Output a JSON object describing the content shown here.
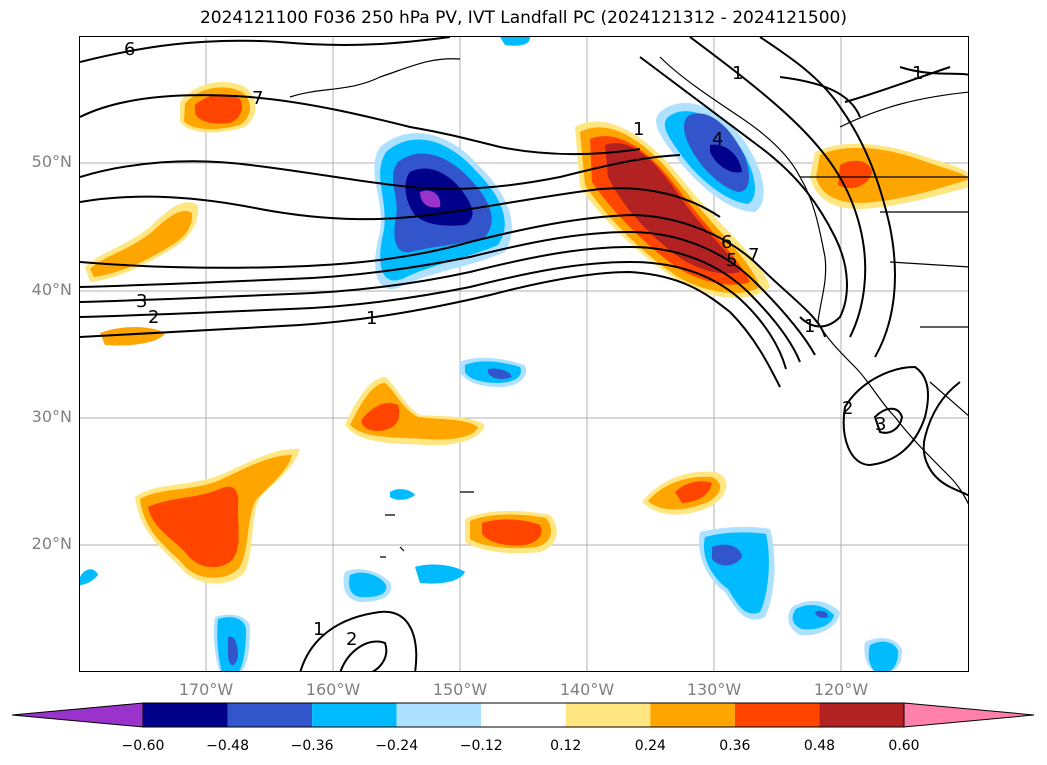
{
  "title": "2024121100 F036 250 hPa PV, IVT Landfall PC (2024121312 - 2024121500)",
  "lat_labels": [
    "50°N",
    "40°N",
    "30°N",
    "20°N"
  ],
  "lon_labels": [
    "170°W",
    "160°W",
    "150°W",
    "140°W",
    "130°W",
    "120°W"
  ],
  "colorbar": {
    "ticks": [
      "−0.60",
      "−0.48",
      "−0.36",
      "−0.24",
      "−0.12",
      "0.12",
      "0.24",
      "0.36",
      "0.48",
      "0.60"
    ],
    "colors": [
      "#9933cc",
      "#00008b",
      "#3355cc",
      "#00bbff",
      "#aee0ff",
      "#ffffff",
      "#ffe680",
      "#ffa500",
      "#ff4500",
      "#b22222",
      "#ff80aa"
    ]
  },
  "contour_labels": [
    "6",
    "7",
    "3",
    "2",
    "1",
    "1",
    "1",
    "1",
    "4",
    "5",
    "6",
    "7",
    "1",
    "2",
    "3",
    "1",
    "2"
  ]
}
